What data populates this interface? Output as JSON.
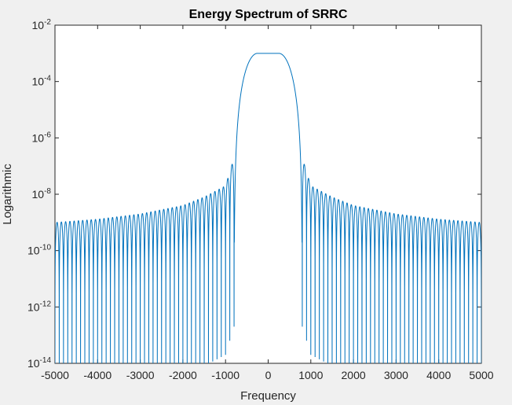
{
  "chart_data": {
    "type": "line",
    "title": "Energy Spectrum of SRRC",
    "xlabel": "Frequency",
    "ylabel": "Logarithmic",
    "xlim": [
      -5000,
      5000
    ],
    "ylim": [
      1e-14,
      0.01
    ],
    "yscale": "log",
    "grid": false,
    "legend": "none",
    "series_color": "#0072BD",
    "x_ticks": [
      {
        "value": -5000,
        "label": "-5000"
      },
      {
        "value": -4000,
        "label": "-4000"
      },
      {
        "value": -3000,
        "label": "-3000"
      },
      {
        "value": -2000,
        "label": "-2000"
      },
      {
        "value": -1000,
        "label": "-1000"
      },
      {
        "value": 0,
        "label": "0"
      },
      {
        "value": 1000,
        "label": "1000"
      },
      {
        "value": 2000,
        "label": "2000"
      },
      {
        "value": 3000,
        "label": "3000"
      },
      {
        "value": 4000,
        "label": "4000"
      },
      {
        "value": 5000,
        "label": "5000"
      }
    ],
    "y_ticks": [
      {
        "value": 1e-14,
        "base": "10",
        "exp": "-14"
      },
      {
        "value": 1e-12,
        "base": "10",
        "exp": "-12"
      },
      {
        "value": 1e-10,
        "base": "10",
        "exp": "-10"
      },
      {
        "value": 1e-08,
        "base": "10",
        "exp": "-8"
      },
      {
        "value": 1e-06,
        "base": "10",
        "exp": "-6"
      },
      {
        "value": 0.0001,
        "base": "10",
        "exp": "-4"
      },
      {
        "value": 0.01,
        "base": "10",
        "exp": "-2"
      }
    ],
    "series": [
      {
        "passband_flat_value": 0.001,
        "passband_edges": [
          -250,
          250
        ],
        "rolloff_edges": [
          -800,
          800
        ],
        "sidelobe_envelope": [
          {
            "x": 800,
            "y": 2e-07
          },
          {
            "x": 1000,
            "y": 2e-08
          },
          {
            "x": 1500,
            "y": 8e-09
          },
          {
            "x": 2000,
            "y": 4e-09
          },
          {
            "x": 3000,
            "y": 2e-09
          },
          {
            "x": 4000,
            "y": 1.3e-09
          },
          {
            "x": 5000,
            "y": 1e-09
          }
        ],
        "null_period": 100
      }
    ]
  }
}
